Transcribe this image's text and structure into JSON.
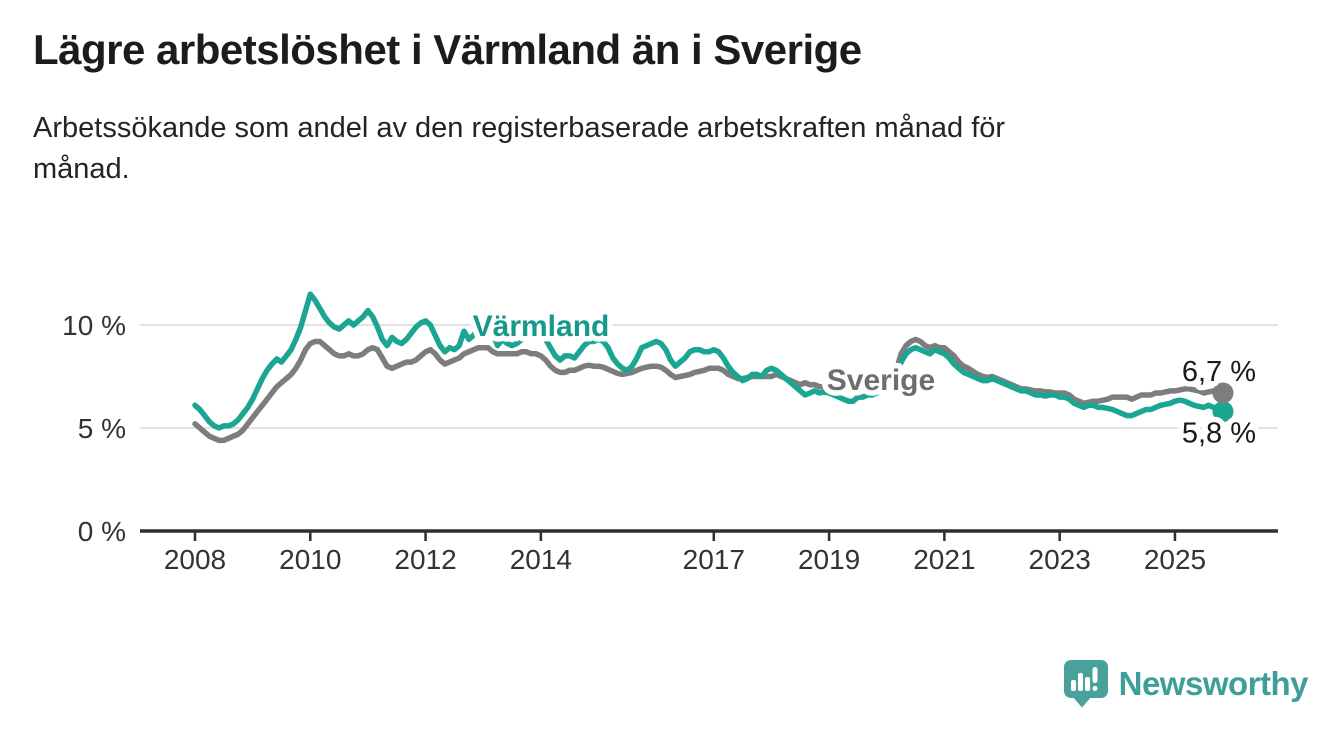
{
  "branding": {
    "name": "Newsworthy",
    "icon_color": "#48a19b",
    "text_color": "#3f9e99"
  },
  "colors": {
    "varmland_teal": "#1ba693",
    "sverige_gray": "#7d7d7d",
    "grid": "#d9d9d9",
    "axis": "#2f2f2f",
    "text": "#1a1a1a"
  },
  "chart_data": {
    "type": "line",
    "title": "Lägre arbetslöshet i Värmland än i Sverige",
    "subtitle": "Arbetssökande som andel av den registerbaserade arbetskraften månad för månad.",
    "subtitle_lines": [
      "Arbetssökande som andel av den registerbaserade arbetskraften månad för",
      "månad."
    ],
    "unit": "%",
    "frequency": "monthly",
    "x_start": "2008-01",
    "x_end": "2025-11",
    "ylim": [
      0,
      12
    ],
    "grid": "horizontal",
    "legend_position": "inline-labels",
    "yticks": [
      {
        "label": "0 %",
        "value": 0
      },
      {
        "label": "5 %",
        "value": 5
      },
      {
        "label": "10 %",
        "value": 10
      }
    ],
    "xticks": [
      {
        "label": "2008",
        "month_index": 0
      },
      {
        "label": "2010",
        "month_index": 24
      },
      {
        "label": "2012",
        "month_index": 48
      },
      {
        "label": "2014",
        "month_index": 72
      },
      {
        "label": "2017",
        "month_index": 108
      },
      {
        "label": "2019",
        "month_index": 132
      },
      {
        "label": "2021",
        "month_index": 156
      },
      {
        "label": "2023",
        "month_index": 180
      },
      {
        "label": "2025",
        "month_index": 204
      }
    ],
    "series": [
      {
        "name": "Värmland",
        "color": "#1ba693",
        "label_color": "#14998a",
        "end_label": "5,8 %",
        "end_value": 5.8,
        "values": [
          6.1,
          5.9,
          5.6,
          5.3,
          5.1,
          5.0,
          5.1,
          5.1,
          5.2,
          5.4,
          5.7,
          6.0,
          6.4,
          6.9,
          7.4,
          7.8,
          8.1,
          8.35,
          8.2,
          8.5,
          8.8,
          9.3,
          9.9,
          10.7,
          11.5,
          11.2,
          10.8,
          10.4,
          10.1,
          9.9,
          9.8,
          10.0,
          10.2,
          10.0,
          10.2,
          10.4,
          10.7,
          10.4,
          9.9,
          9.3,
          9.0,
          9.4,
          9.2,
          9.1,
          9.3,
          9.6,
          9.9,
          10.1,
          10.2,
          10.0,
          9.5,
          9.0,
          8.7,
          8.9,
          8.8,
          9.0,
          9.7,
          9.3,
          9.5,
          9.8,
          10.0,
          10.1,
          9.6,
          9.0,
          9.3,
          9.1,
          9.0,
          9.1,
          9.3,
          9.4,
          9.4,
          9.5,
          9.5,
          9.3,
          8.9,
          8.5,
          8.3,
          8.5,
          8.5,
          8.4,
          8.7,
          9.0,
          9.2,
          9.2,
          9.3,
          9.2,
          8.9,
          8.4,
          8.1,
          7.9,
          7.8,
          8.0,
          8.4,
          8.9,
          9.0,
          9.1,
          9.2,
          9.1,
          8.8,
          8.3,
          8.0,
          8.2,
          8.4,
          8.7,
          8.8,
          8.8,
          8.7,
          8.7,
          8.8,
          8.7,
          8.4,
          8.0,
          7.7,
          7.5,
          7.3,
          7.4,
          7.6,
          7.6,
          7.5,
          7.8,
          7.9,
          7.8,
          7.6,
          7.4,
          7.2,
          7.0,
          6.8,
          6.6,
          6.7,
          6.8,
          6.7,
          6.75,
          6.7,
          6.6,
          6.5,
          6.4,
          6.3,
          6.3,
          6.5,
          6.5,
          6.6,
          6.6,
          6.7,
          6.8,
          6.9,
          7.0,
          7.4,
          8.2,
          8.6,
          8.8,
          8.9,
          8.8,
          8.7,
          8.6,
          8.8,
          8.7,
          8.6,
          8.4,
          8.1,
          7.9,
          7.7,
          7.6,
          7.5,
          7.4,
          7.3,
          7.3,
          7.4,
          7.3,
          7.2,
          7.1,
          7.0,
          6.9,
          6.8,
          6.8,
          6.7,
          6.6,
          6.6,
          6.55,
          6.6,
          6.6,
          6.5,
          6.5,
          6.4,
          6.2,
          6.1,
          6.0,
          6.1,
          6.1,
          6.0,
          6.0,
          5.95,
          5.9,
          5.8,
          5.7,
          5.6,
          5.6,
          5.7,
          5.8,
          5.9,
          5.9,
          6.0,
          6.1,
          6.15,
          6.2,
          6.3,
          6.35,
          6.3,
          6.2,
          6.1,
          6.05,
          6.0,
          6.1,
          6.0,
          5.9,
          5.8
        ]
      },
      {
        "name": "Sverige",
        "color": "#7d7d7d",
        "label_color": "#6e6e6e",
        "end_label": "6,7 %",
        "end_value": 6.7,
        "values": [
          5.2,
          5.0,
          4.8,
          4.6,
          4.5,
          4.4,
          4.4,
          4.5,
          4.6,
          4.7,
          4.9,
          5.2,
          5.5,
          5.8,
          6.1,
          6.4,
          6.7,
          7.0,
          7.2,
          7.4,
          7.6,
          7.9,
          8.3,
          8.8,
          9.1,
          9.2,
          9.2,
          9.0,
          8.8,
          8.6,
          8.5,
          8.5,
          8.6,
          8.5,
          8.5,
          8.6,
          8.8,
          8.9,
          8.8,
          8.4,
          8.0,
          7.9,
          8.0,
          8.1,
          8.2,
          8.2,
          8.3,
          8.5,
          8.7,
          8.8,
          8.6,
          8.3,
          8.1,
          8.2,
          8.3,
          8.4,
          8.6,
          8.7,
          8.8,
          8.9,
          8.9,
          8.9,
          8.7,
          8.6,
          8.6,
          8.6,
          8.6,
          8.6,
          8.7,
          8.7,
          8.6,
          8.6,
          8.5,
          8.3,
          8.0,
          7.8,
          7.7,
          7.7,
          7.8,
          7.8,
          7.9,
          8.0,
          8.05,
          8.0,
          8.0,
          7.95,
          7.85,
          7.75,
          7.65,
          7.6,
          7.65,
          7.7,
          7.8,
          7.9,
          7.95,
          8.0,
          8.0,
          7.95,
          7.8,
          7.6,
          7.45,
          7.5,
          7.55,
          7.6,
          7.7,
          7.75,
          7.8,
          7.9,
          7.9,
          7.9,
          7.8,
          7.6,
          7.5,
          7.4,
          7.4,
          7.45,
          7.5,
          7.5,
          7.5,
          7.5,
          7.5,
          7.6,
          7.5,
          7.4,
          7.3,
          7.2,
          7.1,
          7.2,
          7.1,
          7.1,
          7.0,
          7.0,
          7.0,
          6.95,
          6.9,
          6.9,
          6.9,
          6.95,
          7.0,
          7.0,
          7.0,
          7.05,
          7.1,
          7.2,
          7.3,
          7.4,
          7.8,
          8.6,
          9.0,
          9.2,
          9.3,
          9.2,
          9.0,
          8.9,
          9.0,
          8.9,
          8.9,
          8.7,
          8.5,
          8.2,
          8.0,
          7.9,
          7.75,
          7.6,
          7.5,
          7.45,
          7.5,
          7.4,
          7.3,
          7.2,
          7.1,
          7.0,
          6.9,
          6.9,
          6.85,
          6.8,
          6.8,
          6.75,
          6.75,
          6.7,
          6.7,
          6.7,
          6.6,
          6.4,
          6.3,
          6.2,
          6.25,
          6.3,
          6.3,
          6.35,
          6.4,
          6.5,
          6.5,
          6.5,
          6.5,
          6.4,
          6.5,
          6.6,
          6.6,
          6.6,
          6.7,
          6.7,
          6.75,
          6.8,
          6.8,
          6.85,
          6.9,
          6.9,
          6.85,
          6.8,
          6.7,
          6.75,
          6.8,
          6.75,
          6.7
        ]
      }
    ]
  }
}
